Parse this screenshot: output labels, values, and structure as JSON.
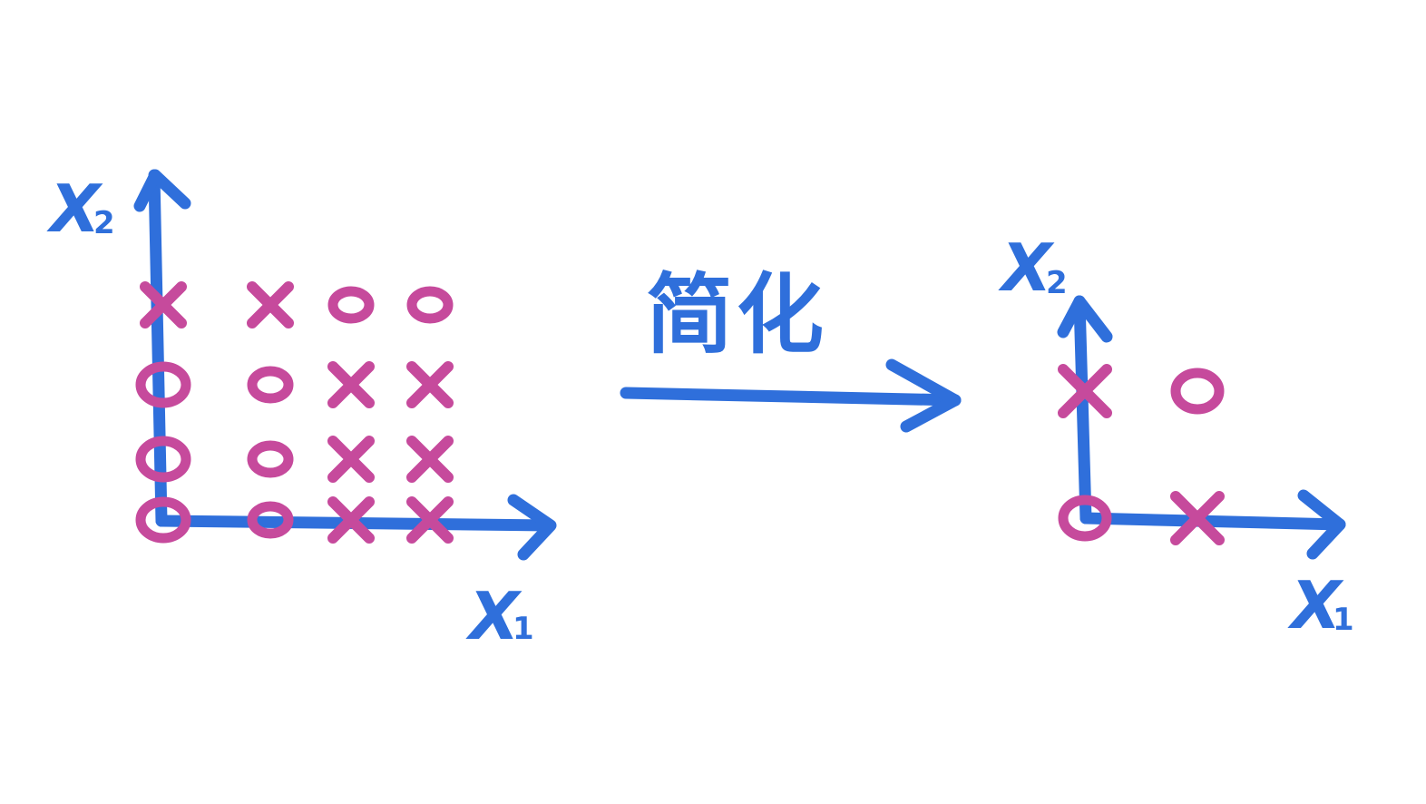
{
  "colors": {
    "axis": "#2f6fdb",
    "mark": "#c64a9c",
    "background": "#ffffff"
  },
  "left_panel": {
    "x_axis_label": "X",
    "x_axis_subscript": "1",
    "y_axis_label": "X",
    "y_axis_subscript": "2",
    "grid": [
      [
        "o",
        "o",
        "x",
        "x"
      ],
      [
        "o",
        "o",
        "x",
        "x"
      ],
      [
        "o",
        "o",
        "x",
        "x"
      ],
      [
        "x",
        "x",
        "o",
        "o"
      ]
    ]
  },
  "right_panel": {
    "x_axis_label": "X",
    "x_axis_subscript": "1",
    "y_axis_label": "X",
    "y_axis_subscript": "2",
    "grid": [
      [
        "o",
        "x"
      ],
      [
        "x",
        "o"
      ]
    ]
  },
  "transform_arrow": {
    "label": "简化"
  }
}
